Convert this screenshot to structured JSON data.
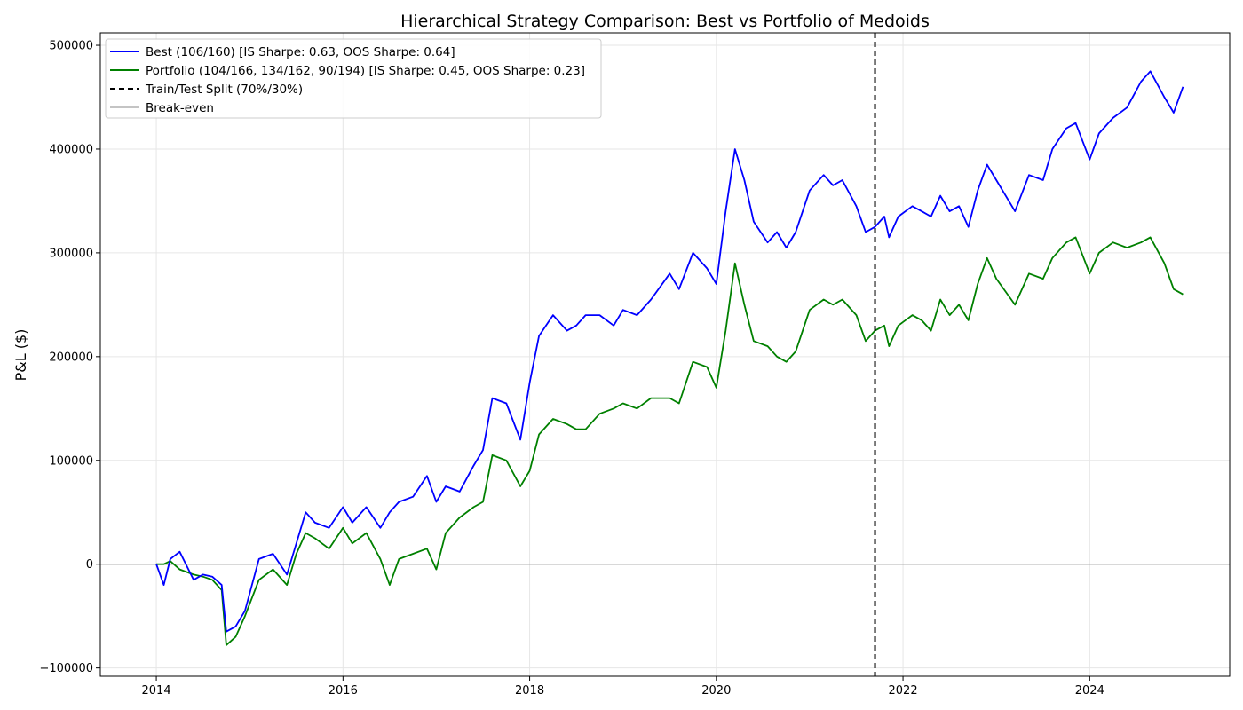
{
  "chart_data": {
    "type": "line",
    "title": "Hierarchical Strategy Comparison: Best vs Portfolio of Medoids",
    "xlabel": "",
    "ylabel": "P&L ($)",
    "xlim": [
      2013.4,
      2025.5
    ],
    "ylim": [
      -108000,
      512000
    ],
    "x_ticks": [
      2014,
      2016,
      2018,
      2020,
      2022,
      2024
    ],
    "x_tick_labels": [
      "2014",
      "2016",
      "2018",
      "2020",
      "2022",
      "2024"
    ],
    "y_ticks": [
      -100000,
      0,
      100000,
      200000,
      300000,
      400000,
      500000
    ],
    "y_tick_labels": [
      "−100000",
      "0",
      "100000",
      "200000",
      "300000",
      "400000",
      "500000"
    ],
    "grid": true,
    "legend_position": "top-left",
    "split_x": 2021.7,
    "break_even": 0,
    "series": [
      {
        "name": "Best (106/160) [IS Sharpe: 0.63, OOS Sharpe: 0.64]",
        "color": "#0000ff",
        "x": [
          2014.0,
          2014.08,
          2014.15,
          2014.25,
          2014.4,
          2014.5,
          2014.6,
          2014.7,
          2014.75,
          2014.85,
          2014.95,
          2015.1,
          2015.25,
          2015.4,
          2015.5,
          2015.6,
          2015.7,
          2015.85,
          2016.0,
          2016.1,
          2016.25,
          2016.4,
          2016.5,
          2016.6,
          2016.75,
          2016.9,
          2017.0,
          2017.1,
          2017.25,
          2017.4,
          2017.5,
          2017.6,
          2017.75,
          2017.9,
          2018.0,
          2018.1,
          2018.25,
          2018.4,
          2018.5,
          2018.6,
          2018.75,
          2018.9,
          2019.0,
          2019.15,
          2019.3,
          2019.5,
          2019.6,
          2019.75,
          2019.9,
          2020.0,
          2020.1,
          2020.2,
          2020.3,
          2020.4,
          2020.55,
          2020.65,
          2020.75,
          2020.85,
          2021.0,
          2021.15,
          2021.25,
          2021.35,
          2021.5,
          2021.6,
          2021.7,
          2021.8,
          2021.85,
          2021.95,
          2022.1,
          2022.2,
          2022.3,
          2022.4,
          2022.5,
          2022.6,
          2022.7,
          2022.8,
          2022.9,
          2023.0,
          2023.2,
          2023.35,
          2023.5,
          2023.6,
          2023.75,
          2023.85,
          2024.0,
          2024.1,
          2024.25,
          2024.4,
          2024.55,
          2024.65,
          2024.8,
          2024.9,
          2025.0
        ],
        "values": [
          0,
          -20000,
          5000,
          12000,
          -15000,
          -10000,
          -12000,
          -20000,
          -65000,
          -60000,
          -45000,
          5000,
          10000,
          -10000,
          20000,
          50000,
          40000,
          35000,
          55000,
          40000,
          55000,
          35000,
          50000,
          60000,
          65000,
          85000,
          60000,
          75000,
          70000,
          95000,
          110000,
          160000,
          155000,
          120000,
          175000,
          220000,
          240000,
          225000,
          230000,
          240000,
          240000,
          230000,
          245000,
          240000,
          255000,
          280000,
          265000,
          300000,
          285000,
          270000,
          340000,
          400000,
          370000,
          330000,
          310000,
          320000,
          305000,
          320000,
          360000,
          375000,
          365000,
          370000,
          345000,
          320000,
          325000,
          335000,
          315000,
          335000,
          345000,
          340000,
          335000,
          355000,
          340000,
          345000,
          325000,
          360000,
          385000,
          370000,
          340000,
          375000,
          370000,
          400000,
          420000,
          425000,
          390000,
          415000,
          430000,
          440000,
          465000,
          475000,
          450000,
          435000,
          460000
        ]
      },
      {
        "name": "Portfolio (104/166, 134/162, 90/194) [IS Sharpe: 0.45, OOS Sharpe: 0.23]",
        "color": "#008000",
        "x": [
          2014.0,
          2014.08,
          2014.15,
          2014.25,
          2014.4,
          2014.5,
          2014.6,
          2014.7,
          2014.75,
          2014.85,
          2014.95,
          2015.1,
          2015.25,
          2015.4,
          2015.5,
          2015.6,
          2015.7,
          2015.85,
          2016.0,
          2016.1,
          2016.25,
          2016.4,
          2016.5,
          2016.6,
          2016.75,
          2016.9,
          2017.0,
          2017.1,
          2017.25,
          2017.4,
          2017.5,
          2017.6,
          2017.75,
          2017.9,
          2018.0,
          2018.1,
          2018.25,
          2018.4,
          2018.5,
          2018.6,
          2018.75,
          2018.9,
          2019.0,
          2019.15,
          2019.3,
          2019.5,
          2019.6,
          2019.75,
          2019.9,
          2020.0,
          2020.1,
          2020.2,
          2020.3,
          2020.4,
          2020.55,
          2020.65,
          2020.75,
          2020.85,
          2021.0,
          2021.15,
          2021.25,
          2021.35,
          2021.5,
          2021.6,
          2021.7,
          2021.8,
          2021.85,
          2021.95,
          2022.1,
          2022.2,
          2022.3,
          2022.4,
          2022.5,
          2022.6,
          2022.7,
          2022.8,
          2022.9,
          2023.0,
          2023.2,
          2023.35,
          2023.5,
          2023.6,
          2023.75,
          2023.85,
          2024.0,
          2024.1,
          2024.25,
          2024.4,
          2024.55,
          2024.65,
          2024.8,
          2024.9,
          2025.0
        ],
        "values": [
          0,
          0,
          3000,
          -5000,
          -10000,
          -12000,
          -15000,
          -25000,
          -78000,
          -70000,
          -50000,
          -15000,
          -5000,
          -20000,
          10000,
          30000,
          25000,
          15000,
          35000,
          20000,
          30000,
          5000,
          -20000,
          5000,
          10000,
          15000,
          -5000,
          30000,
          45000,
          55000,
          60000,
          105000,
          100000,
          75000,
          90000,
          125000,
          140000,
          135000,
          130000,
          130000,
          145000,
          150000,
          155000,
          150000,
          160000,
          160000,
          155000,
          195000,
          190000,
          170000,
          225000,
          290000,
          250000,
          215000,
          210000,
          200000,
          195000,
          205000,
          245000,
          255000,
          250000,
          255000,
          240000,
          215000,
          225000,
          230000,
          210000,
          230000,
          240000,
          235000,
          225000,
          255000,
          240000,
          250000,
          235000,
          270000,
          295000,
          275000,
          250000,
          280000,
          275000,
          295000,
          310000,
          315000,
          280000,
          300000,
          310000,
          305000,
          310000,
          315000,
          290000,
          265000,
          260000
        ]
      },
      {
        "name": "Train/Test Split (70%/30%)",
        "color": "#000000"
      },
      {
        "name": "Break-even",
        "color": "#b0b0b0"
      }
    ]
  }
}
